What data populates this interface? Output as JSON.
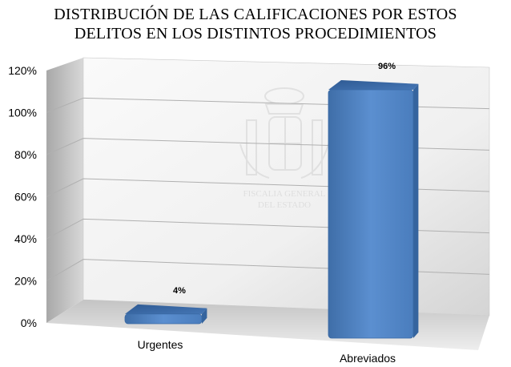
{
  "chart_data": {
    "type": "bar",
    "title_lines": [
      "DISTRIBUCIÓN DE LAS CALIFICACIONES POR ESTOS",
      "DELITOS EN LOS DISTINTOS PROCEDIMIENTOS"
    ],
    "categories": [
      "Urgentes",
      "Abreviados"
    ],
    "values": [
      4,
      96
    ],
    "data_labels": [
      "4%",
      "96%"
    ],
    "y_ticks": [
      "0%",
      "20%",
      "40%",
      "60%",
      "80%",
      "100%",
      "120%"
    ],
    "ylim": [
      0,
      120
    ],
    "grid": true,
    "style": "3d-column",
    "bar_color": "#4F81BD"
  },
  "watermark": {
    "line1": "FISCALIA GENERAL",
    "line2": "DEL ESTADO"
  }
}
